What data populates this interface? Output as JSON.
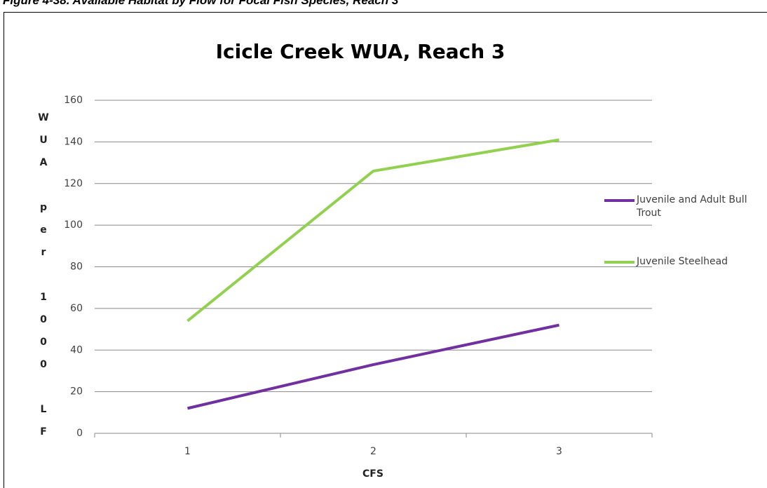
{
  "caption": "Figure 4-38. Available Habitat by Flow for Focal Fish Species, Reach 3",
  "chart_data": {
    "type": "line",
    "title": "Icicle Creek WUA, Reach 3",
    "x_label": "CFS",
    "y_label": "WUA per 1000 LF",
    "categories": [
      "1",
      "2",
      "3"
    ],
    "series": [
      {
        "name": "Juvenile and Adult Bull Trout",
        "color": "#7030a0",
        "values": [
          12,
          33,
          52
        ]
      },
      {
        "name": "Juvenile Steelhead",
        "color": "#92d050",
        "values": [
          54,
          126,
          141
        ]
      }
    ],
    "ylim": [
      0,
      160
    ],
    "yticks": [
      0,
      20,
      40,
      60,
      80,
      100,
      120,
      140,
      160
    ],
    "grid": true,
    "legend": "right"
  }
}
